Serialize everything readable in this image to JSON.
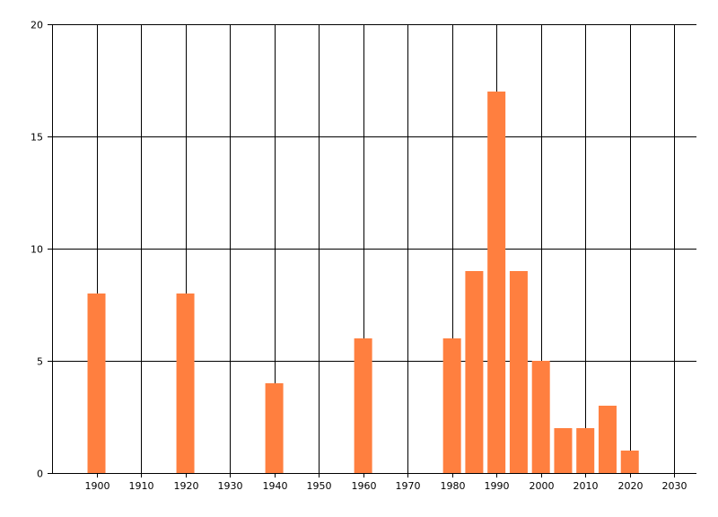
{
  "chart_data": {
    "type": "bar",
    "title": "",
    "xlabel": "",
    "ylabel": "",
    "x": [
      1900,
      1920,
      1940,
      1960,
      1980,
      1985,
      1990,
      1995,
      2000,
      2005,
      2010,
      2015,
      2020
    ],
    "values": [
      8,
      8,
      4,
      6,
      6,
      9,
      17,
      9,
      5,
      2,
      2,
      3,
      1
    ],
    "xlim": [
      1890,
      2035
    ],
    "ylim": [
      0,
      20
    ],
    "x_ticks": [
      "1900",
      "1910",
      "1920",
      "1930",
      "1940",
      "1950",
      "1960",
      "1970",
      "1980",
      "1990",
      "2000",
      "2010",
      "2020",
      "2030"
    ],
    "y_ticks": [
      "0",
      "5",
      "10",
      "15",
      "20"
    ],
    "grid": true,
    "bar_color": "#FF7F3F",
    "grid_color": "#000000"
  }
}
